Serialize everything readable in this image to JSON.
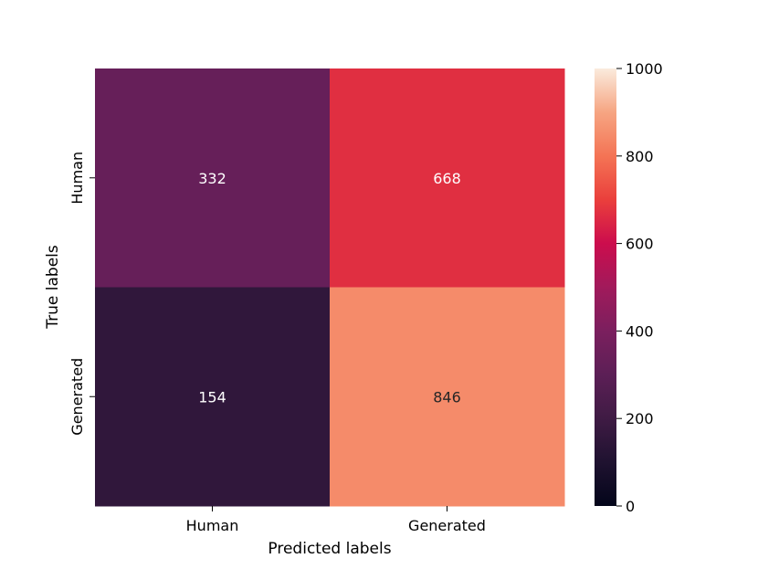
{
  "chart_data": {
    "type": "heatmap",
    "title": "",
    "xlabel": "Predicted labels",
    "ylabel": "True labels",
    "x_categories": [
      "Human",
      "Generated"
    ],
    "y_categories": [
      "Human",
      "Generated"
    ],
    "values": [
      [
        332,
        668
      ],
      [
        154,
        846
      ]
    ],
    "colormap": "rocket",
    "colorbar": {
      "vmin": 0,
      "vmax": 1000,
      "ticks": [
        0,
        200,
        400,
        600,
        800,
        1000
      ]
    },
    "annotation_colors": {
      "light_text": "#ffffff",
      "dark_text": "#262626"
    }
  }
}
